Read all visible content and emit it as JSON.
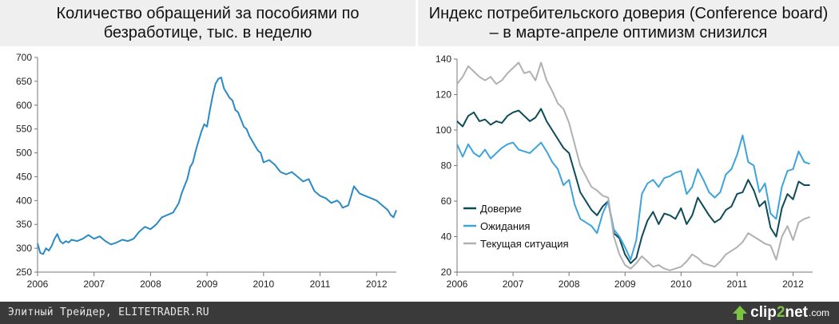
{
  "footer": {
    "text": "Элитный Трейдер, ELITETRADER.RU",
    "logo_prefix": "clip",
    "logo_digit": "2",
    "logo_suffix": "net",
    "logo_tld": ".com",
    "accent_color": "#7dc242"
  },
  "chart_data": [
    {
      "type": "line",
      "title": "Количество обращений за пособиями по безработице, тыс. в неделю",
      "xlabel": "",
      "ylabel": "",
      "x_ticks": [
        "2006",
        "2007",
        "2008",
        "2009",
        "2010",
        "2011",
        "2012"
      ],
      "y_ticks": [
        "700",
        "650",
        "600",
        "550",
        "500",
        "450",
        "400",
        "350",
        "300",
        "250"
      ],
      "xlim": [
        2006.0,
        2012.35
      ],
      "ylim": [
        250,
        700
      ],
      "grid": false,
      "legend": "none",
      "series": [
        {
          "color": "#2a8ac6",
          "x": [
            2006.0,
            2006.05,
            2006.1,
            2006.15,
            2006.2,
            2006.25,
            2006.3,
            2006.35,
            2006.4,
            2006.45,
            2006.5,
            2006.55,
            2006.6,
            2006.7,
            2006.8,
            2006.9,
            2007.0,
            2007.1,
            2007.2,
            2007.3,
            2007.4,
            2007.5,
            2007.6,
            2007.7,
            2007.8,
            2007.9,
            2008.0,
            2008.1,
            2008.2,
            2008.3,
            2008.4,
            2008.5,
            2008.55,
            2008.6,
            2008.65,
            2008.7,
            2008.75,
            2008.8,
            2008.85,
            2008.9,
            2008.95,
            2009.0,
            2009.05,
            2009.1,
            2009.15,
            2009.2,
            2009.25,
            2009.3,
            2009.35,
            2009.4,
            2009.45,
            2009.5,
            2009.55,
            2009.6,
            2009.65,
            2009.7,
            2009.75,
            2009.8,
            2009.85,
            2009.9,
            2009.95,
            2010.0,
            2010.1,
            2010.2,
            2010.3,
            2010.4,
            2010.5,
            2010.6,
            2010.7,
            2010.8,
            2010.9,
            2011.0,
            2011.1,
            2011.2,
            2011.3,
            2011.35,
            2011.4,
            2011.5,
            2011.6,
            2011.7,
            2011.8,
            2011.9,
            2012.0,
            2012.1,
            2012.2,
            2012.25,
            2012.3,
            2012.35
          ],
          "values": [
            310,
            290,
            288,
            300,
            295,
            305,
            320,
            330,
            315,
            310,
            315,
            312,
            318,
            315,
            320,
            328,
            320,
            325,
            315,
            308,
            312,
            318,
            315,
            320,
            335,
            345,
            340,
            350,
            365,
            370,
            375,
            395,
            415,
            430,
            445,
            470,
            480,
            505,
            525,
            545,
            560,
            555,
            590,
            620,
            645,
            655,
            658,
            635,
            625,
            615,
            610,
            590,
            585,
            570,
            555,
            550,
            535,
            525,
            515,
            505,
            500,
            480,
            485,
            475,
            460,
            455,
            460,
            450,
            440,
            445,
            420,
            410,
            405,
            395,
            400,
            395,
            385,
            390,
            430,
            415,
            410,
            405,
            400,
            390,
            380,
            370,
            365,
            380
          ]
        }
      ]
    },
    {
      "type": "line",
      "title": "Индекс потребительского доверия (Conference board) – в марте-апреле оптимизм снизился",
      "xlabel": "",
      "ylabel": "",
      "x_ticks": [
        "2006",
        "2007",
        "2008",
        "2009",
        "2010",
        "2011",
        "2012"
      ],
      "y_ticks": [
        "140",
        "120",
        "100",
        "80",
        "60",
        "40",
        "20"
      ],
      "xlim": [
        2006.0,
        2012.35
      ],
      "ylim": [
        20,
        140
      ],
      "grid": false,
      "legend": "left",
      "x": [
        2006.0,
        2006.1,
        2006.2,
        2006.3,
        2006.4,
        2006.5,
        2006.6,
        2006.7,
        2006.8,
        2006.9,
        2007.0,
        2007.1,
        2007.2,
        2007.3,
        2007.4,
        2007.5,
        2007.6,
        2007.7,
        2007.8,
        2007.9,
        2008.0,
        2008.1,
        2008.2,
        2008.3,
        2008.4,
        2008.5,
        2008.6,
        2008.7,
        2008.8,
        2008.9,
        2009.0,
        2009.1,
        2009.2,
        2009.3,
        2009.4,
        2009.5,
        2009.6,
        2009.7,
        2009.8,
        2009.9,
        2010.0,
        2010.1,
        2010.2,
        2010.3,
        2010.4,
        2010.5,
        2010.6,
        2010.7,
        2010.8,
        2010.9,
        2011.0,
        2011.1,
        2011.2,
        2011.3,
        2011.4,
        2011.5,
        2011.6,
        2011.7,
        2011.8,
        2011.9,
        2012.0,
        2012.1,
        2012.2,
        2012.3
      ],
      "series": [
        {
          "name": "Доверие",
          "color": "#0d4a5a",
          "values": [
            105,
            102,
            108,
            110,
            105,
            106,
            103,
            105,
            104,
            108,
            110,
            111,
            108,
            105,
            107,
            112,
            105,
            100,
            95,
            90,
            87,
            76,
            65,
            60,
            55,
            52,
            57,
            60,
            42,
            39,
            30,
            25,
            28,
            40,
            49,
            54,
            47,
            53,
            52,
            50,
            56,
            47,
            52,
            62,
            57,
            52,
            48,
            50,
            55,
            57,
            64,
            65,
            72,
            66,
            57,
            60,
            45,
            40,
            56,
            64,
            61,
            71,
            69,
            69
          ]
        },
        {
          "name": "Ожидания",
          "color": "#3ea3dc",
          "values": [
            92,
            85,
            92,
            87,
            85,
            89,
            84,
            87,
            90,
            92,
            93,
            89,
            88,
            87,
            90,
            93,
            88,
            82,
            78,
            69,
            72,
            58,
            50,
            48,
            46,
            42,
            53,
            60,
            44,
            40,
            34,
            27,
            38,
            64,
            70,
            72,
            68,
            73,
            74,
            76,
            77,
            64,
            68,
            78,
            72,
            65,
            62,
            65,
            75,
            78,
            86,
            97,
            82,
            80,
            65,
            70,
            53,
            50,
            68,
            77,
            78,
            88,
            82,
            81
          ]
        },
        {
          "name": "Текущая ситуация",
          "color": "#b0b0b0",
          "values": [
            126,
            130,
            136,
            133,
            130,
            128,
            130,
            126,
            128,
            132,
            135,
            138,
            132,
            133,
            128,
            138,
            128,
            122,
            115,
            112,
            104,
            92,
            80,
            74,
            68,
            66,
            63,
            62,
            40,
            30,
            24,
            22,
            25,
            29,
            26,
            23,
            24,
            22,
            21,
            22,
            23,
            26,
            30,
            28,
            25,
            24,
            23,
            26,
            30,
            32,
            34,
            37,
            42,
            40,
            38,
            36,
            35,
            27,
            40,
            46,
            38,
            48,
            50,
            51
          ]
        }
      ]
    }
  ]
}
